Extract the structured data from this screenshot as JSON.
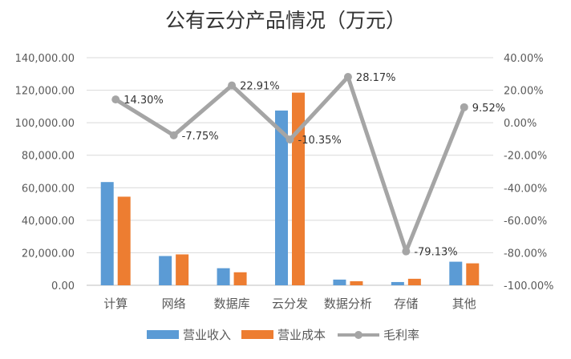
{
  "chart_data": {
    "type": "bar",
    "title": "公有云分产品情况（万元）",
    "categories": [
      "计算",
      "网络",
      "数据库",
      "云分发",
      "数据分析",
      "存储",
      "其他"
    ],
    "series": [
      {
        "name": "营业收入",
        "type": "bar",
        "axis": "left",
        "color": "#5B9BD5",
        "values": [
          63500,
          18000,
          10500,
          107500,
          3500,
          2000,
          14500
        ]
      },
      {
        "name": "营业成本",
        "type": "bar",
        "axis": "left",
        "color": "#ED7D31",
        "values": [
          54500,
          19000,
          8000,
          118500,
          2500,
          4000,
          13500
        ]
      },
      {
        "name": "毛利率",
        "type": "line",
        "axis": "right",
        "color": "#A5A5A5",
        "values": [
          14.3,
          -7.75,
          22.91,
          -10.35,
          28.17,
          -79.13,
          9.52
        ],
        "labels": [
          "14.30%",
          "-7.75%",
          "22.91%",
          "-10.35%",
          "28.17%",
          "-79.13%",
          "9.52%"
        ]
      }
    ],
    "ylim_left": [
      0,
      140000
    ],
    "ylim_right": [
      -100,
      40
    ],
    "yticks_left": [
      "0.00",
      "20,000.00",
      "40,000.00",
      "60,000.00",
      "80,000.00",
      "100,000.00",
      "120,000.00",
      "140,000.00"
    ],
    "yticks_right": [
      "-100.00%",
      "-80.00%",
      "-60.00%",
      "-40.00%",
      "-20.00%",
      "0.00%",
      "20.00%",
      "40.00%"
    ],
    "grid": true,
    "legend_position": "bottom"
  }
}
